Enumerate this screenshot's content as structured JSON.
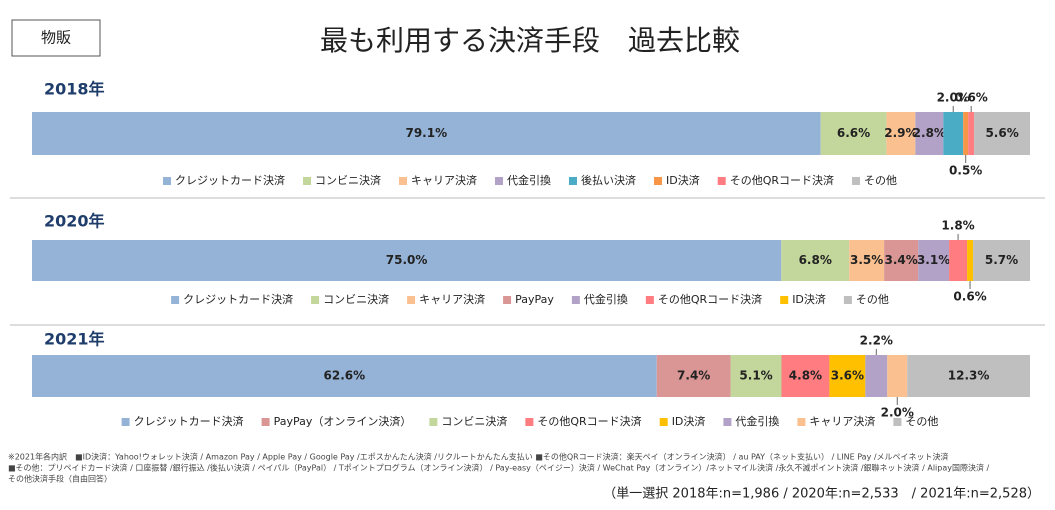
{
  "tag": "物販",
  "title": "最も利用する決済手段　過去比較",
  "chart_data": [
    {
      "type": "bar",
      "title": "2018年",
      "series": [
        {
          "name": "クレジットカード決済",
          "color": "#95b3d7",
          "values": [
            79.1
          ],
          "value_labels": [
            "79.1%"
          ]
        },
        {
          "name": "コンビニ決済",
          "color": "#c3d69b",
          "values": [
            6.6
          ],
          "value_labels": [
            "6.6%"
          ]
        },
        {
          "name": "キャリア決済",
          "color": "#fac090",
          "values": [
            2.9
          ],
          "value_labels": [
            "2.9%"
          ]
        },
        {
          "name": "代金引換",
          "color": "#b3a2c7",
          "values": [
            2.8
          ],
          "value_labels": [
            "2.8%"
          ]
        },
        {
          "name": "後払い決済",
          "color": "#4bacc6",
          "values": [
            2.0
          ],
          "value_labels": [
            "2.0%"
          ]
        },
        {
          "name": "ID決済",
          "color": "#f79646",
          "values": [
            0.5
          ],
          "value_labels": [
            "0.5%"
          ]
        },
        {
          "name": "その他QRコード決済",
          "color": "#ff7c80",
          "values": [
            0.6
          ],
          "value_labels": [
            "0.6%"
          ]
        },
        {
          "name": "その他",
          "color": "#bfbfbf",
          "values": [
            5.6
          ],
          "value_labels": [
            "5.6%"
          ]
        }
      ]
    },
    {
      "type": "bar",
      "title": "2020年",
      "series": [
        {
          "name": "クレジットカード決済",
          "color": "#95b3d7",
          "values": [
            75.0
          ],
          "value_labels": [
            "75.0%"
          ]
        },
        {
          "name": "コンビニ決済",
          "color": "#c3d69b",
          "values": [
            6.8
          ],
          "value_labels": [
            "6.8%"
          ]
        },
        {
          "name": "キャリア決済",
          "color": "#fac090",
          "values": [
            3.5
          ],
          "value_labels": [
            "3.5%"
          ]
        },
        {
          "name": "PayPay",
          "color": "#d99694",
          "values": [
            3.4
          ],
          "value_labels": [
            "3.4%"
          ]
        },
        {
          "name": "代金引換",
          "color": "#b3a2c7",
          "values": [
            3.1
          ],
          "value_labels": [
            "3.1%"
          ]
        },
        {
          "name": "その他QRコード決済",
          "color": "#ff7c80",
          "values": [
            1.8
          ],
          "value_labels": [
            "1.8%"
          ]
        },
        {
          "name": "ID決済",
          "color": "#ffc000",
          "values": [
            0.6
          ],
          "value_labels": [
            "0.6%"
          ]
        },
        {
          "name": "その他",
          "color": "#bfbfbf",
          "values": [
            5.7
          ],
          "value_labels": [
            "5.7%"
          ]
        }
      ]
    },
    {
      "type": "bar",
      "title": "2021年",
      "series": [
        {
          "name": "クレジットカード決済",
          "color": "#95b3d7",
          "values": [
            62.6
          ],
          "value_labels": [
            "62.6%"
          ]
        },
        {
          "name": "PayPay（オンライン決済）",
          "color": "#d99694",
          "values": [
            7.4
          ],
          "value_labels": [
            "7.4%"
          ]
        },
        {
          "name": "コンビニ決済",
          "color": "#c3d69b",
          "values": [
            5.1
          ],
          "value_labels": [
            "5.1%"
          ]
        },
        {
          "name": "その他QRコード決済",
          "color": "#ff7c80",
          "values": [
            4.8
          ],
          "value_labels": [
            "4.8%"
          ]
        },
        {
          "name": "ID決済",
          "color": "#ffc000",
          "values": [
            3.6
          ],
          "value_labels": [
            "3.6%"
          ]
        },
        {
          "name": "代金引換",
          "color": "#b3a2c7",
          "values": [
            2.2
          ],
          "value_labels": [
            "2.2%"
          ]
        },
        {
          "name": "キャリア決済",
          "color": "#fac090",
          "values": [
            2.0
          ],
          "value_labels": [
            "2.0%"
          ]
        },
        {
          "name": "その他",
          "color": "#bfbfbf",
          "values": [
            12.3
          ],
          "value_labels": [
            "12.3%"
          ]
        }
      ]
    }
  ],
  "notes": [
    "※2021年各内訳　■ID決済：Yahoo!ウォレット決済 / Amazon Pay / Apple Pay / Google Pay /エポスかんたん決済 /リクルートかんたん支払い ■その他QRコード決済：楽天ペイ（オンライン決済） / au PAY（ネット支払い） / LINE Pay /メルペイネット決済",
    "■その他：プリペイドカード決済 / 口座振替 /銀行振込 /後払い決済 / ペイパル（PayPal） / Tポイントプログラム（オンライン決済） / Pay-easy（ペイジー）決済 / WeChat Pay（オンライン）/ネットマイル決済 /永久不滅ポイント決済 /銀聯ネット決済 / Alipay国際決済 /",
    "その他決済手段（自由回答）"
  ],
  "sample_note": "（単一選択 2018年:n=1,986 / 2020年:n=2,533　/ 2021年:n=2,528）"
}
